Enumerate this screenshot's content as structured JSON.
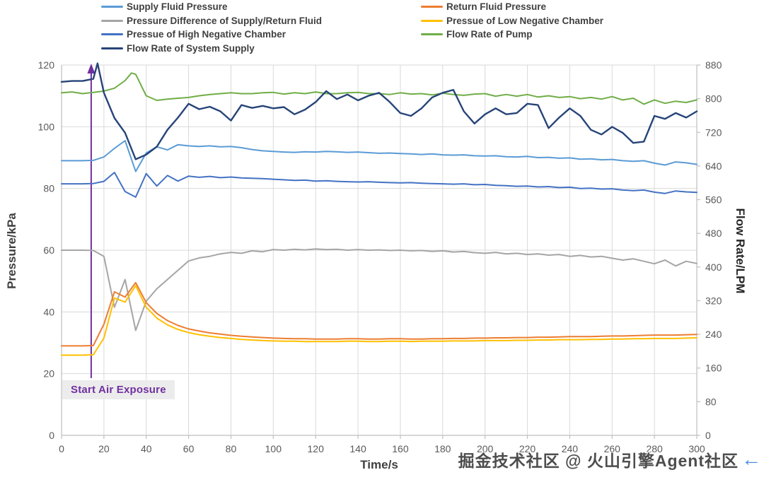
{
  "watermark": {
    "text": "掘金技术社区 @ 火山引擎Agent社区",
    "arrow_glyph": "←",
    "arrow_color": "#4a8fe0"
  },
  "chart_data": {
    "type": "line",
    "title": "",
    "grid": true,
    "legend_position": "top",
    "x_axis": {
      "title": "Time/s",
      "min": 0,
      "max": 300,
      "tick_step": 20,
      "ticks": [
        0,
        20,
        40,
        60,
        80,
        100,
        120,
        140,
        160,
        180,
        200,
        220,
        240,
        260,
        280,
        300
      ]
    },
    "y_axis_left": {
      "title": "Pressure/kPa",
      "min": 0,
      "max": 120,
      "tick_step": 20,
      "ticks": [
        0,
        20,
        40,
        60,
        80,
        100,
        120
      ]
    },
    "y_axis_right": {
      "title": "Flow Rate/LPM",
      "min": 0,
      "max": 880,
      "tick_step": 80,
      "ticks": [
        0,
        80,
        160,
        240,
        320,
        400,
        480,
        560,
        640,
        720,
        800,
        880
      ]
    },
    "annotation": {
      "label": "Start Air Exposure",
      "time_s": 14,
      "color": "#7030a0"
    },
    "series": [
      {
        "name": "Supply Fluid Pressure",
        "color": "#5b9bd5",
        "axis": "left",
        "legend_col": 0,
        "legend_row": 0,
        "z": 4,
        "x_start": 0,
        "x_step": 5,
        "y": [
          89,
          89,
          89,
          89.1,
          90.2,
          93,
          95.5,
          85.5,
          91.5,
          93.5,
          92.5,
          94.2,
          93.8,
          93.6,
          93.8,
          93.5,
          93.6,
          93.2,
          92.6,
          92.2,
          92,
          91.8,
          91.7,
          91.9,
          91.8,
          92,
          91.9,
          91.7,
          91.8,
          91.6,
          91.4,
          91.5,
          91.3,
          91.2,
          91,
          91.2,
          90.9,
          90.8,
          90.9,
          90.6,
          90.5,
          90.6,
          90.3,
          90.2,
          90.4,
          90,
          90.1,
          89.8,
          89.9,
          89.5,
          89.6,
          89.3,
          89.4,
          89,
          88.8,
          89,
          88.2,
          87.6,
          88.6,
          88.3,
          87.8
        ]
      },
      {
        "name": "Pressure Difference of Supply/Return Fluid",
        "color": "#a5a5a5",
        "axis": "left",
        "legend_col": 0,
        "legend_row": 1,
        "z": 1,
        "x_start": 0,
        "x_step": 5,
        "y": [
          60,
          60,
          60,
          59.9,
          58,
          41.5,
          50.5,
          34,
          43.5,
          47.5,
          50.5,
          53.5,
          56.5,
          57.5,
          58,
          58.8,
          59.3,
          59,
          59.8,
          59.5,
          60.2,
          60,
          60.3,
          60.1,
          60.4,
          60.2,
          60.3,
          60,
          60.2,
          60,
          60.1,
          59.9,
          60,
          59.8,
          59.9,
          59.6,
          59.8,
          59.4,
          59.6,
          59.2,
          59,
          59.3,
          58.8,
          59,
          58.6,
          58.8,
          58.4,
          58.6,
          58,
          58.3,
          57.8,
          58,
          57.4,
          56.8,
          57.2,
          56.4,
          55.6,
          56.8,
          54.9,
          56.4,
          55.7
        ]
      },
      {
        "name": "Pressue of High Negative Chamber",
        "color": "#4472c4",
        "axis": "left",
        "legend_col": 0,
        "legend_row": 2,
        "z": 5,
        "x_start": 0,
        "x_step": 5,
        "y": [
          81.5,
          81.5,
          81.5,
          81.6,
          82.3,
          85.2,
          79,
          77.2,
          84.8,
          80.8,
          84.2,
          82.4,
          84,
          83.6,
          83.9,
          83.5,
          83.7,
          83.4,
          83.3,
          83.2,
          83,
          82.8,
          82.6,
          82.7,
          82.4,
          82.5,
          82.3,
          82.2,
          82.1,
          82.2,
          82,
          81.9,
          81.8,
          81.9,
          81.7,
          81.6,
          81.5,
          81.4,
          81.5,
          81.2,
          81.3,
          81,
          80.9,
          80.7,
          80.8,
          80.5,
          80.6,
          80.3,
          80.4,
          80,
          80.1,
          79.8,
          79.9,
          79.5,
          79.3,
          79.5,
          78.8,
          78.4,
          79.2,
          78.9,
          78.7
        ]
      },
      {
        "name": "Flow Rate of System Supply",
        "color": "#264478",
        "axis": "right",
        "legend_col": 0,
        "legend_row": 3,
        "z": 7,
        "x": [
          0,
          5,
          10,
          15,
          17,
          20,
          25,
          30,
          35,
          40,
          45,
          50,
          55,
          60,
          65,
          70,
          75,
          80,
          85,
          90,
          95,
          100,
          105,
          110,
          115,
          120,
          125,
          130,
          135,
          140,
          145,
          150,
          155,
          160,
          165,
          170,
          175,
          180,
          185,
          190,
          195,
          200,
          205,
          210,
          215,
          220,
          225,
          230,
          235,
          240,
          245,
          250,
          255,
          260,
          265,
          270,
          275,
          280,
          285,
          290,
          295,
          300
        ],
        "y": [
          840,
          842,
          842,
          847,
          884,
          814,
          754,
          719,
          656,
          667,
          686,
          726,
          755,
          788,
          775,
          781,
          770,
          748,
          785,
          778,
          783,
          777,
          780,
          763,
          774,
          792,
          818,
          799,
          810,
          796,
          807,
          814,
          792,
          766,
          759,
          777,
          803,
          814,
          821,
          770,
          741,
          763,
          777,
          763,
          766,
          788,
          785,
          730,
          755,
          777,
          759,
          726,
          715,
          733,
          719,
          695,
          698,
          759,
          752,
          766,
          755,
          770
        ]
      },
      {
        "name": "Return Fluid Pressure",
        "color": "#ed7d31",
        "axis": "left",
        "legend_col": 1,
        "legend_row": 0,
        "z": 2,
        "x_start": 0,
        "x_step": 5,
        "y": [
          29,
          29,
          29,
          29.1,
          36,
          46.5,
          44.8,
          49.5,
          43,
          39.5,
          37.2,
          35.6,
          34.5,
          33.8,
          33.2,
          32.8,
          32.4,
          32.1,
          31.9,
          31.7,
          31.5,
          31.4,
          31.3,
          31.3,
          31.2,
          31.2,
          31.2,
          31.3,
          31.3,
          31.2,
          31.2,
          31.3,
          31.3,
          31.2,
          31.2,
          31.3,
          31.3,
          31.4,
          31.4,
          31.5,
          31.5,
          31.6,
          31.6,
          31.7,
          31.7,
          31.8,
          31.8,
          31.9,
          32,
          32,
          32,
          32.1,
          32.2,
          32.2,
          32.3,
          32.4,
          32.5,
          32.5,
          32.5,
          32.6,
          32.7
        ]
      },
      {
        "name": "Pressue of Low Negative Chamber",
        "color": "#ffc000",
        "axis": "left",
        "legend_col": 1,
        "legend_row": 1,
        "z": 3,
        "x_start": 0,
        "x_step": 5,
        "y": [
          26,
          26,
          26,
          26.1,
          31.5,
          44.5,
          43.2,
          48.5,
          41.5,
          38,
          35.8,
          34.3,
          33.3,
          32.6,
          32.1,
          31.7,
          31.4,
          31.1,
          30.9,
          30.7,
          30.6,
          30.5,
          30.5,
          30.4,
          30.4,
          30.4,
          30.4,
          30.5,
          30.5,
          30.4,
          30.4,
          30.5,
          30.5,
          30.4,
          30.5,
          30.5,
          30.5,
          30.6,
          30.6,
          30.6,
          30.7,
          30.7,
          30.7,
          30.8,
          30.8,
          30.9,
          30.9,
          31,
          31,
          31,
          31.1,
          31.1,
          31.2,
          31.2,
          31.3,
          31.3,
          31.4,
          31.4,
          31.4,
          31.5,
          31.6
        ]
      },
      {
        "name": "Flow Rate of Pump",
        "color": "#70ad47",
        "axis": "right",
        "legend_col": 1,
        "legend_row": 2,
        "z": 6,
        "x": [
          0,
          5,
          10,
          15,
          20,
          25,
          30,
          33,
          35,
          40,
          45,
          50,
          55,
          60,
          65,
          70,
          75,
          80,
          85,
          90,
          95,
          100,
          105,
          110,
          115,
          120,
          125,
          130,
          135,
          140,
          145,
          150,
          155,
          160,
          165,
          170,
          175,
          180,
          185,
          190,
          195,
          200,
          205,
          210,
          215,
          220,
          225,
          230,
          235,
          240,
          245,
          250,
          255,
          260,
          265,
          270,
          275,
          280,
          285,
          290,
          295,
          300
        ],
        "y": [
          814,
          816,
          812,
          815,
          818,
          825,
          843,
          861,
          858,
          807,
          796,
          799,
          801,
          803,
          807,
          810,
          812,
          814,
          812,
          812,
          814,
          815,
          811,
          814,
          812,
          816,
          812,
          812,
          814,
          815,
          812,
          812,
          810,
          814,
          811,
          812,
          809,
          813,
          810,
          808,
          811,
          812,
          806,
          810,
          806,
          810,
          804,
          807,
          803,
          805,
          800,
          803,
          799,
          805,
          797,
          801,
          787,
          797,
          789,
          794,
          791,
          797
        ]
      }
    ]
  }
}
